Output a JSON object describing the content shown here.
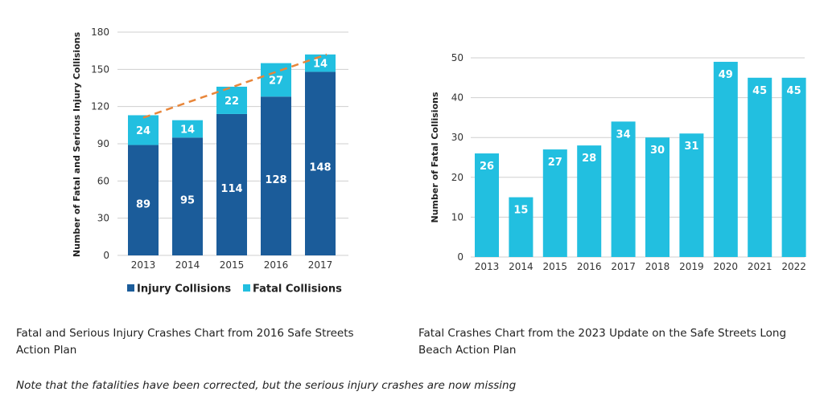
{
  "chart_data": [
    {
      "type": "bar",
      "stacked": true,
      "categories": [
        "2013",
        "2014",
        "2015",
        "2016",
        "2017"
      ],
      "series": [
        {
          "name": "Injury Collisions",
          "values": [
            89,
            95,
            114,
            128,
            148
          ],
          "color": "#1b5c9a"
        },
        {
          "name": "Fatal Collisions",
          "values": [
            24,
            14,
            22,
            27,
            14
          ],
          "color": "#22bfe0"
        }
      ],
      "trendline": {
        "style": "dashed",
        "color": "#e8863a",
        "from": {
          "x": "2013",
          "y": 111
        },
        "to": {
          "x": "2017",
          "y": 162
        }
      },
      "title": "",
      "xlabel": "",
      "ylabel": "Number of Fatal and Serious Injury Collisions",
      "ylim": [
        0,
        180
      ],
      "yticks": [
        0,
        30,
        60,
        90,
        120,
        150,
        180
      ],
      "grid": true,
      "legend": "bottom"
    },
    {
      "type": "bar",
      "categories": [
        "2013",
        "2014",
        "2015",
        "2016",
        "2017",
        "2018",
        "2019",
        "2020",
        "2021",
        "2022"
      ],
      "values": [
        26,
        15,
        27,
        28,
        34,
        30,
        31,
        49,
        45,
        45
      ],
      "color": "#22bfe0",
      "title": "",
      "xlabel": "",
      "ylabel": "Number of Fatal Collisions",
      "ylim": [
        0,
        50
      ],
      "yticks": [
        0,
        10,
        20,
        30,
        40,
        50
      ],
      "grid": true
    }
  ],
  "captions": {
    "left_line1": "Fatal and Serious Injury Crashes Chart from 2016 Safe Streets",
    "left_line2": "Action Plan",
    "right_line1": "Fatal Crashes Chart from the 2023 Update on the Safe Streets Long",
    "right_line2": "Beach Action Plan",
    "note": "Note that the fatalities have been corrected, but the serious injury crashes are now missing"
  }
}
